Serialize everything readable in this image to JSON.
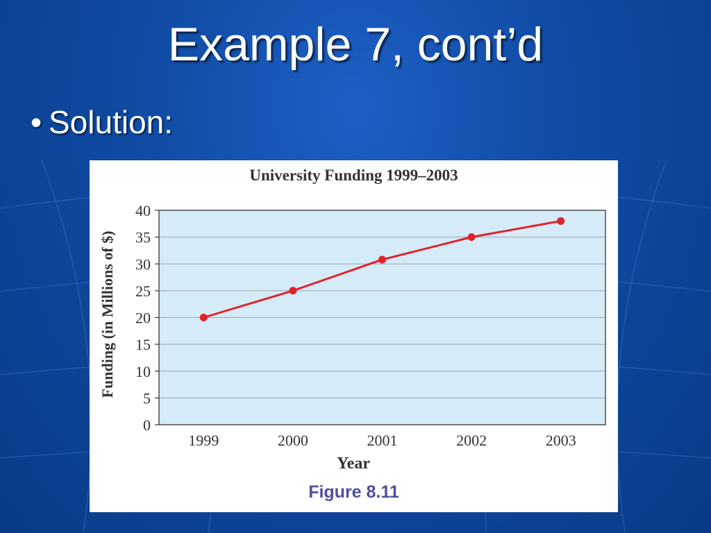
{
  "slide": {
    "title": "Example 7, cont’d",
    "bullet": "Solution:"
  },
  "figure": {
    "caption": "Figure 8.11"
  },
  "colors": {
    "background": "#0f4aa3",
    "plot_area": "#d6ebf8",
    "line": "#e0222a",
    "caption": "#4f4f9a"
  },
  "chart_data": {
    "type": "line",
    "title": "University Funding 1999–2003",
    "xlabel": "Year",
    "ylabel": "Funding (in Millions of $)",
    "categories": [
      "1999",
      "2000",
      "2001",
      "2002",
      "2003"
    ],
    "series": [
      {
        "values": [
          20,
          25,
          30.8,
          35,
          38
        ]
      }
    ],
    "ylim": [
      0,
      40
    ],
    "yticks": [
      0,
      5,
      10,
      15,
      20,
      25,
      30,
      35,
      40
    ],
    "grid": true,
    "legend": "none"
  }
}
